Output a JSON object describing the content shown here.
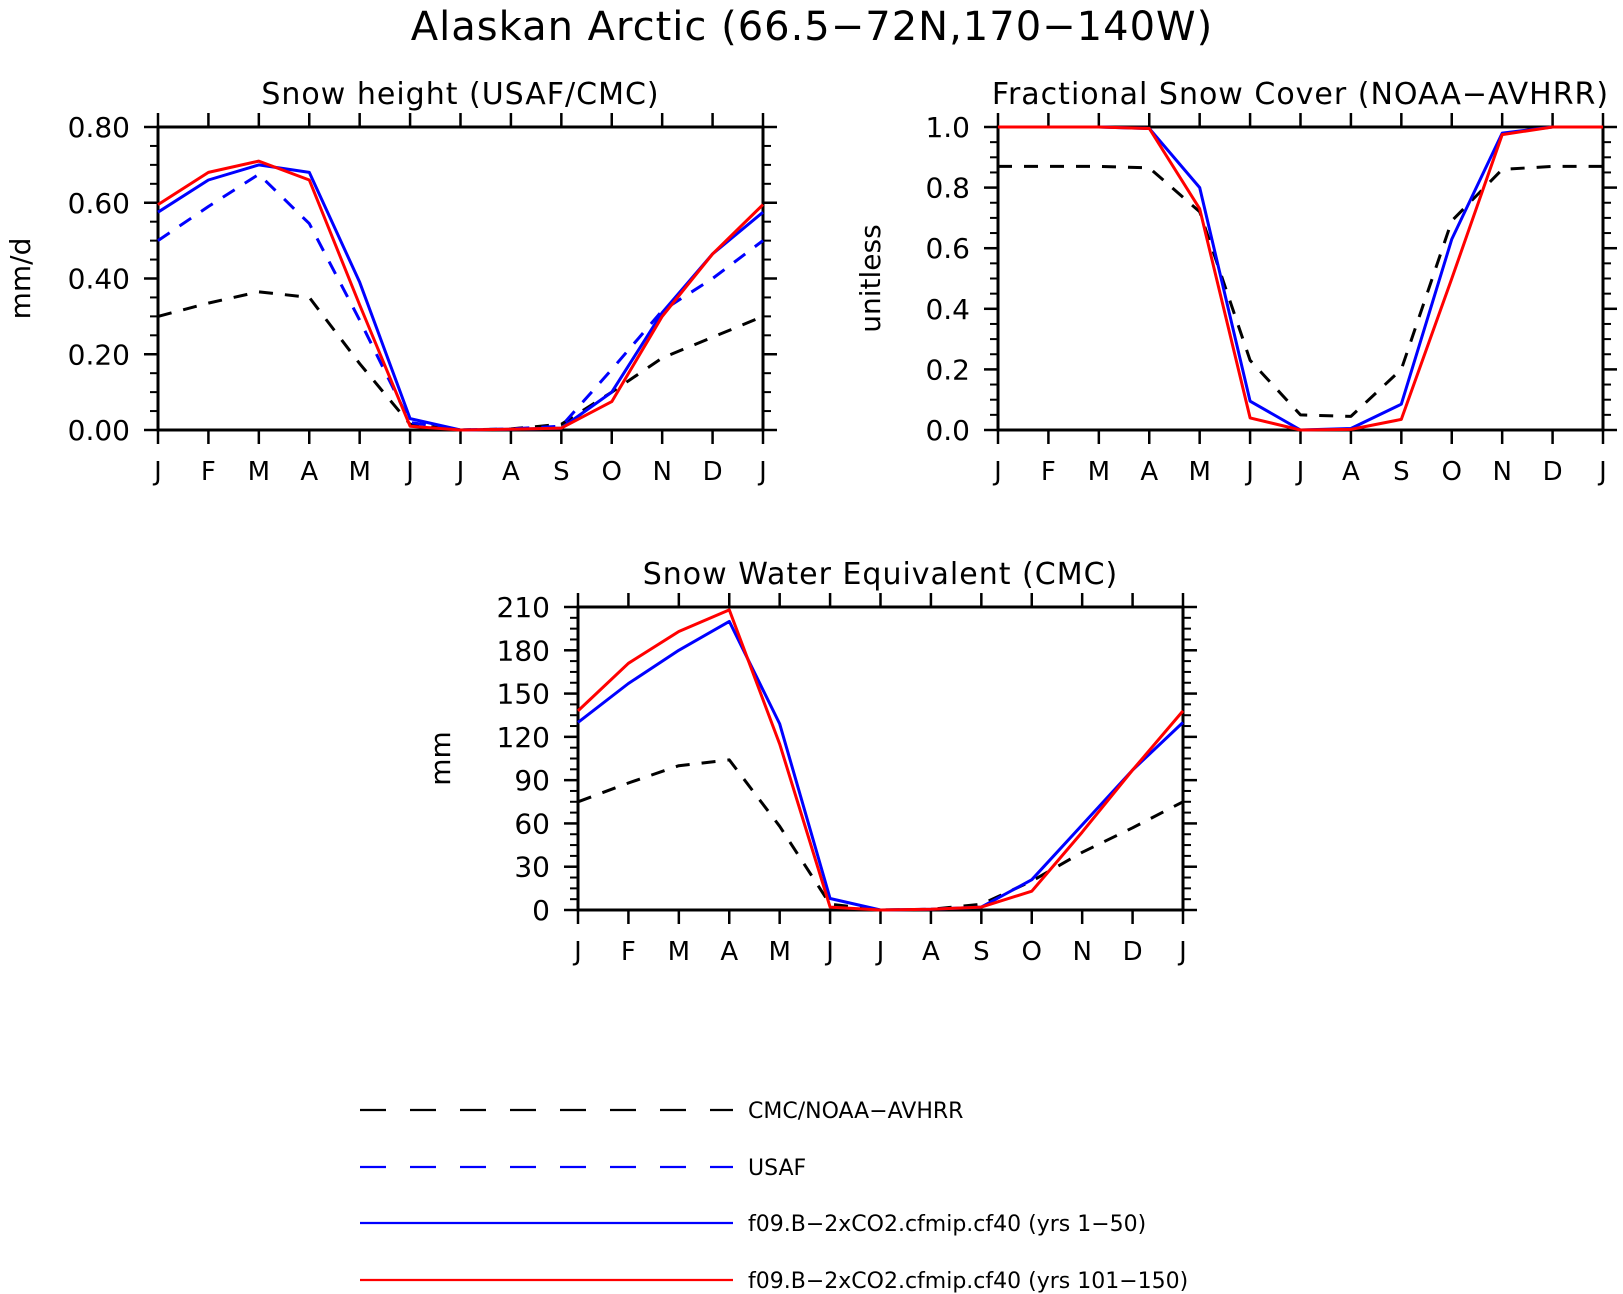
{
  "figure": {
    "title": "Alaskan Arctic (66.5−72N,170−140W)"
  },
  "legend": [
    {
      "label": "CMC/NOAA−AVHRR",
      "color": "#000000",
      "dash": "dashed"
    },
    {
      "label": "USAF",
      "color": "#0000ff",
      "dash": "dashed"
    },
    {
      "label": "f09.B−2xCO2.cfmip.cf40 (yrs 1−50)",
      "color": "#0000ff",
      "dash": "solid"
    },
    {
      "label": "f09.B−2xCO2.cfmip.cf40 (yrs 101−150)",
      "color": "#ff0000",
      "dash": "solid"
    }
  ],
  "chart_data": [
    {
      "type": "line",
      "title": "Snow height (USAF/CMC)",
      "ylabel": "mm/d",
      "xlabel": "",
      "categories": [
        "J",
        "F",
        "M",
        "A",
        "M",
        "J",
        "J",
        "A",
        "S",
        "O",
        "N",
        "D",
        "J"
      ],
      "ylim": [
        0,
        0.8
      ],
      "yticks": [
        "0.00",
        "0.20",
        "0.40",
        "0.60",
        "0.80"
      ],
      "ytick_values": [
        0,
        0.2,
        0.4,
        0.6,
        0.8
      ],
      "series": [
        {
          "legend": 0,
          "values": [
            0.3,
            0.335,
            0.365,
            0.35,
            0.175,
            0.015,
            0.0,
            0.003,
            0.015,
            0.1,
            0.19,
            0.245,
            0.3
          ]
        },
        {
          "legend": 1,
          "values": [
            0.5,
            0.59,
            0.675,
            0.545,
            0.29,
            0.02,
            0.0,
            0.003,
            0.01,
            0.16,
            0.315,
            0.4,
            0.5
          ]
        },
        {
          "legend": 2,
          "values": [
            0.575,
            0.66,
            0.7,
            0.68,
            0.39,
            0.03,
            0.0,
            0.002,
            0.005,
            0.1,
            0.31,
            0.465,
            0.575
          ]
        },
        {
          "legend": 3,
          "values": [
            0.595,
            0.68,
            0.71,
            0.66,
            0.33,
            0.01,
            0.0,
            0.002,
            0.005,
            0.075,
            0.3,
            0.465,
            0.595
          ]
        }
      ]
    },
    {
      "type": "line",
      "title": "Fractional Snow Cover (NOAA−AVHRR)",
      "ylabel": "unitless",
      "xlabel": "",
      "categories": [
        "J",
        "F",
        "M",
        "A",
        "M",
        "J",
        "J",
        "A",
        "S",
        "O",
        "N",
        "D",
        "J"
      ],
      "ylim": [
        0,
        1.0
      ],
      "yticks": [
        "0.0",
        "0.2",
        "0.4",
        "0.6",
        "0.8",
        "1.0"
      ],
      "ytick_values": [
        0,
        0.2,
        0.4,
        0.6,
        0.8,
        1.0
      ],
      "series": [
        {
          "legend": 0,
          "values": [
            0.87,
            0.87,
            0.87,
            0.865,
            0.72,
            0.23,
            0.05,
            0.045,
            0.2,
            0.69,
            0.86,
            0.87,
            0.87
          ]
        },
        {
          "legend": 2,
          "values": [
            1.0,
            1.0,
            1.0,
            0.995,
            0.8,
            0.095,
            0.0,
            0.005,
            0.085,
            0.63,
            0.98,
            1.0,
            1.0
          ]
        },
        {
          "legend": 3,
          "values": [
            1.0,
            1.0,
            1.0,
            0.995,
            0.73,
            0.04,
            0.0,
            0.002,
            0.035,
            0.5,
            0.975,
            1.0,
            1.0
          ]
        }
      ]
    },
    {
      "type": "line",
      "title": "Snow Water Equivalent (CMC)",
      "ylabel": "mm",
      "xlabel": "",
      "categories": [
        "J",
        "F",
        "M",
        "A",
        "M",
        "J",
        "J",
        "A",
        "S",
        "O",
        "N",
        "D",
        "J"
      ],
      "ylim": [
        0,
        210
      ],
      "yticks": [
        "0",
        "30",
        "60",
        "90",
        "120",
        "150",
        "180",
        "210"
      ],
      "ytick_values": [
        0,
        30,
        60,
        90,
        120,
        150,
        180,
        210
      ],
      "series": [
        {
          "legend": 0,
          "values": [
            75,
            88,
            100,
            104,
            58,
            4,
            0,
            0.5,
            4,
            20,
            40,
            57,
            75
          ]
        },
        {
          "legend": 2,
          "values": [
            130,
            157,
            180,
            200,
            129,
            8,
            0,
            0.5,
            2,
            21,
            59,
            97,
            130
          ]
        },
        {
          "legend": 3,
          "values": [
            138,
            171,
            193,
            208,
            115,
            2,
            0,
            0.5,
            2,
            13,
            54,
            97,
            138
          ]
        }
      ]
    }
  ]
}
